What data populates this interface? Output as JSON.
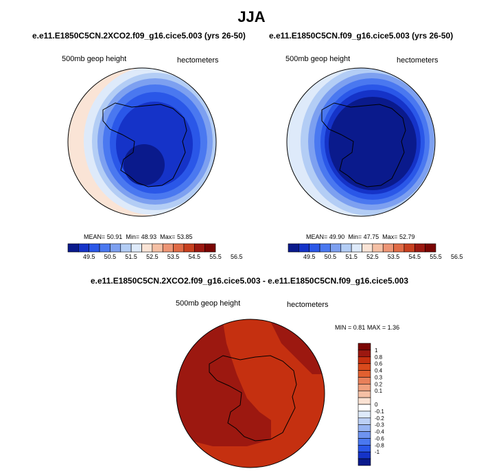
{
  "page_title": "JJA",
  "panels": [
    {
      "case": "e.e11.E1850C5CN.2XCO2.f09_g16.cice5.003 (yrs 26-50)",
      "variable": "500mb geop height",
      "units": "hectometers",
      "stats": {
        "mean_label": "MEAN=",
        "mean": "50.91",
        "min_label": "Min=",
        "min": "48.93",
        "max_label": "Max=",
        "max": "53.85"
      }
    },
    {
      "case": "e.e11.E1850C5CN.f09_g16.cice5.003 (yrs 26-50)",
      "variable": "500mb geop height",
      "units": "hectometers",
      "stats": {
        "mean_label": "MEAN=",
        "mean": "49.90",
        "min_label": "Min=",
        "min": "47.75",
        "max_label": "Max=",
        "max": "52.79"
      }
    }
  ],
  "diff_panel": {
    "case": "e.e11.E1850C5CN.2XCO2.f09_g16.cice5.003 - e.e11.E1850C5CN.f09_g16.cice5.003",
    "variable": "500mb geop height",
    "units": "hectometers",
    "stats": {
      "min_label": "MIN =",
      "min": "0.81",
      "max_label": "MAX =",
      "max": "1.36"
    }
  },
  "colors": {
    "abs_scale": [
      "#0a1a8c",
      "#1533c8",
      "#2a57e8",
      "#4a78f0",
      "#7da0f0",
      "#b3cdf5",
      "#deeafa",
      "#fae4d6",
      "#f5c0a5",
      "#ed9575",
      "#e06a45",
      "#c8401f",
      "#9c1810",
      "#7a0503"
    ],
    "diff_scale": [
      "#0a1a8c",
      "#1533c8",
      "#2a57e8",
      "#4a78f0",
      "#6e93f0",
      "#97b4f2",
      "#bcd0f5",
      "#deeafa",
      "#ffffff",
      "#fbe2d3",
      "#f5c0a5",
      "#f0a07e",
      "#e8805a",
      "#e26030",
      "#d94a1c",
      "#c53010",
      "#9c1810",
      "#7a0503"
    ]
  },
  "chart_data": [
    {
      "type": "heatmap",
      "projection": "polar stereographic (south pole)",
      "title": "e.e11.E1850C5CN.2XCO2.f09_g16.cice5.003 (yrs 26-50)",
      "variable": "500mb geop height",
      "units": "hectometers",
      "colorbar_ticks": [
        49.5,
        50.5,
        51.5,
        52.5,
        53.5,
        54.5,
        55.5,
        56.5
      ],
      "colorbar_tick_labels": [
        "49.5",
        "50.5",
        "51.5",
        "52.5",
        "53.5",
        "54.5",
        "55.5",
        "56.5"
      ],
      "mean": 50.91,
      "min": 48.93,
      "max": 53.85
    },
    {
      "type": "heatmap",
      "projection": "polar stereographic (south pole)",
      "title": "e.e11.E1850C5CN.f09_g16.cice5.003 (yrs 26-50)",
      "variable": "500mb geop height",
      "units": "hectometers",
      "colorbar_ticks": [
        49.5,
        50.5,
        51.5,
        52.5,
        53.5,
        54.5,
        55.5,
        56.5
      ],
      "colorbar_tick_labels": [
        "49.5",
        "50.5",
        "51.5",
        "52.5",
        "53.5",
        "54.5",
        "55.5",
        "56.5"
      ],
      "mean": 49.9,
      "min": 47.75,
      "max": 52.79
    },
    {
      "type": "heatmap",
      "projection": "polar stereographic (south pole)",
      "title": "e.e11.E1850C5CN.2XCO2.f09_g16.cice5.003 - e.e11.E1850C5CN.f09_g16.cice5.003",
      "variable": "500mb geop height",
      "units": "hectometers",
      "colorbar_levels": [
        1,
        0.8,
        0.6,
        0.4,
        0.3,
        0.2,
        0.1,
        0,
        -0.1,
        -0.2,
        -0.3,
        -0.4,
        -0.6,
        -0.8,
        -1
      ],
      "colorbar_tick_labels": [
        "1",
        "0.8",
        "0.6",
        "0.4",
        "0.3",
        "0.2",
        "0.1",
        "0",
        "-0.1",
        "-0.2",
        "-0.3",
        "-0.4",
        "-0.6",
        "-0.8",
        "-1"
      ],
      "min": 0.81,
      "max": 1.36
    }
  ]
}
